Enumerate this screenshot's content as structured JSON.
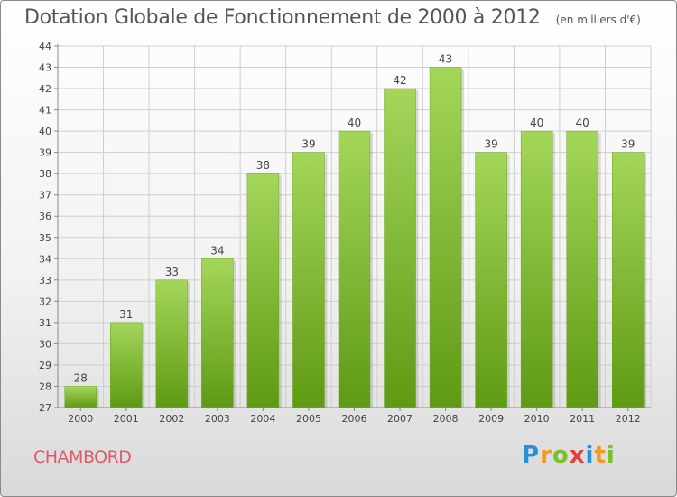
{
  "header": {
    "title": "Dotation Globale de Fonctionnement de 2000 à 2012",
    "unit": "(en milliers d'€)"
  },
  "footer": {
    "commune": "CHAMBORD",
    "brand_letters": [
      "P",
      "r",
      "o",
      "x",
      "i",
      "t",
      "i"
    ]
  },
  "colors": {
    "bar_top": "#a4d65a",
    "bar_bottom": "#5f9a14",
    "grid": "#cfcfcf",
    "commune": "#e05a6a"
  },
  "chart_data": {
    "type": "bar",
    "categories": [
      "2000",
      "2001",
      "2002",
      "2003",
      "2004",
      "2005",
      "2006",
      "2007",
      "2008",
      "2009",
      "2010",
      "2011",
      "2012"
    ],
    "values": [
      28,
      31,
      33,
      34,
      38,
      39,
      40,
      42,
      43,
      39,
      40,
      40,
      39
    ],
    "data_labels": [
      "28",
      "31",
      "33",
      "34",
      "38",
      "39",
      "40",
      "42",
      "43",
      "39",
      "40",
      "40",
      "39"
    ],
    "y_ticks": [
      27,
      28,
      29,
      30,
      31,
      32,
      33,
      34,
      35,
      36,
      37,
      38,
      39,
      40,
      41,
      42,
      43,
      44
    ],
    "ylim": [
      27,
      44
    ],
    "title": "Dotation Globale de Fonctionnement de 2000 à 2012",
    "grid": true,
    "legend": "none"
  }
}
